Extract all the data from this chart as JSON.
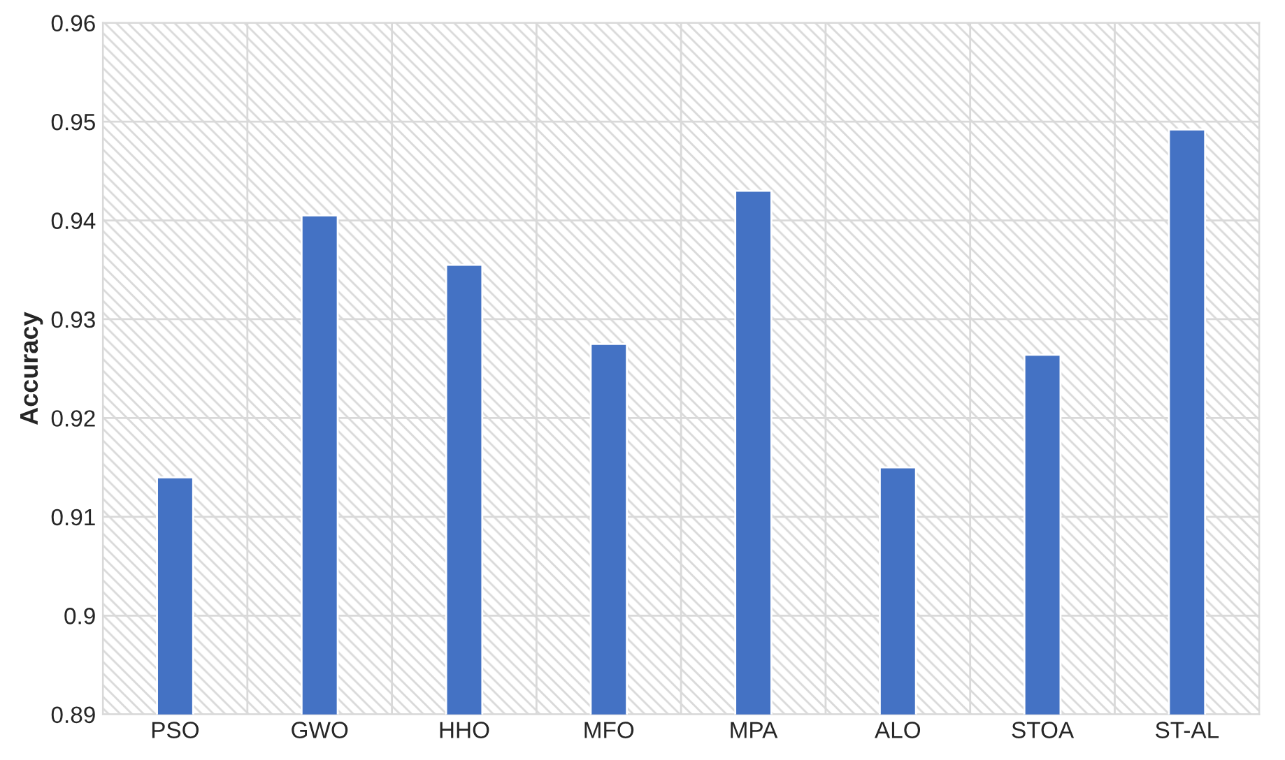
{
  "chart_data": {
    "type": "bar",
    "ylabel": "Accuracy",
    "categories": [
      "PSO",
      "GWO",
      "HHO",
      "MFO",
      "MPA",
      "ALO",
      "STOA",
      "ST-AL"
    ],
    "values": [
      0.914,
      0.9405,
      0.9355,
      0.9275,
      0.943,
      0.915,
      0.9264,
      0.9492
    ],
    "color": "#4472c4",
    "ylim": [
      0.89,
      0.96
    ],
    "yticks": [
      0.89,
      0.9,
      0.91,
      0.92,
      0.93,
      0.94,
      0.95,
      0.96
    ],
    "grid": true
  }
}
